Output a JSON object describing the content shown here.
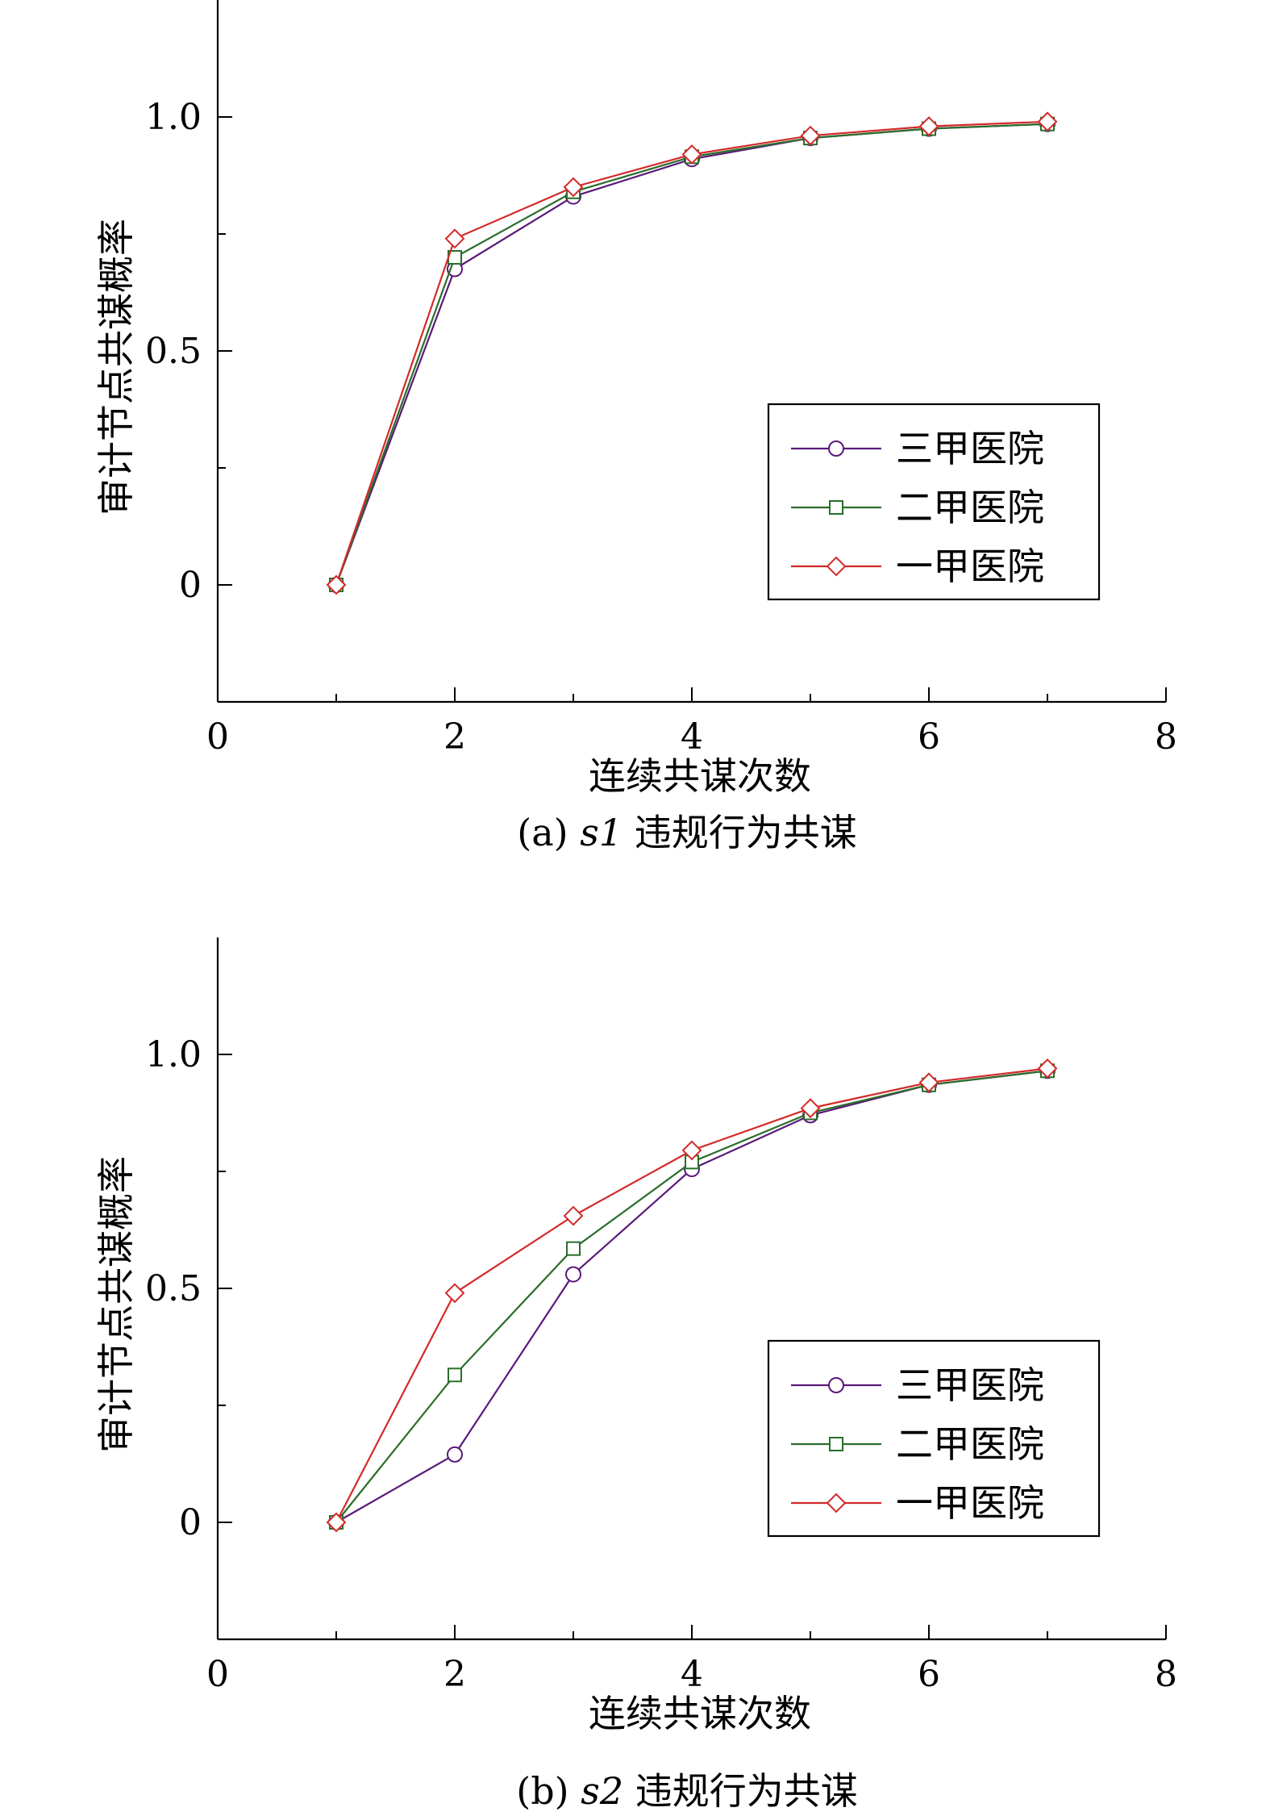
{
  "chart_data": [
    {
      "type": "line",
      "caption_prefix": "(a) ",
      "caption_var": "s1",
      "caption_suffix": " 违规行为共谋",
      "xlabel": "连续共谋次数",
      "ylabel": "审计节点共谋概率",
      "xlim": [
        0,
        8
      ],
      "ylim": [
        -0.25,
        1.25
      ],
      "xticks": [
        0,
        2,
        4,
        6,
        8
      ],
      "xtick_labels": [
        "0",
        "2",
        "4",
        "6",
        "8"
      ],
      "xticks_minor": [
        1,
        3,
        5,
        7
      ],
      "yticks": [
        0,
        0.5,
        1.0
      ],
      "ytick_labels": [
        "0",
        "0.5",
        "1.0"
      ],
      "yticks_minor": [
        0.25,
        0.75
      ],
      "legend_position": "center-right",
      "x": [
        1,
        2,
        3,
        4,
        5,
        6,
        7
      ],
      "series": [
        {
          "name": "三甲医院",
          "marker": "circle",
          "color": "#5a1a7a",
          "values": [
            0,
            0.675,
            0.83,
            0.91,
            0.955,
            0.975,
            0.985
          ]
        },
        {
          "name": "二甲医院",
          "marker": "square",
          "color": "#2a6e2a",
          "values": [
            0,
            0.7,
            0.84,
            0.915,
            0.955,
            0.975,
            0.985
          ]
        },
        {
          "name": "一甲医院",
          "marker": "diamond",
          "color": "#d42a2a",
          "values": [
            0,
            0.74,
            0.85,
            0.92,
            0.96,
            0.98,
            0.99
          ]
        }
      ]
    },
    {
      "type": "line",
      "caption_prefix": "(b) ",
      "caption_var": "s2",
      "caption_suffix": " 违规行为共谋",
      "xlabel": "连续共谋次数",
      "ylabel": "审计节点共谋概率",
      "xlim": [
        0,
        8
      ],
      "ylim": [
        -0.25,
        1.25
      ],
      "xticks": [
        0,
        2,
        4,
        6,
        8
      ],
      "xtick_labels": [
        "0",
        "2",
        "4",
        "6",
        "8"
      ],
      "xticks_minor": [
        1,
        3,
        5,
        7
      ],
      "yticks": [
        0,
        0.5,
        1.0
      ],
      "ytick_labels": [
        "0",
        "0.5",
        "1.0"
      ],
      "yticks_minor": [
        0.25,
        0.75
      ],
      "legend_position": "lower-right",
      "x": [
        1,
        2,
        3,
        4,
        5,
        6,
        7
      ],
      "series": [
        {
          "name": "三甲医院",
          "marker": "circle",
          "color": "#5a1a7a",
          "values": [
            0,
            0.145,
            0.53,
            0.755,
            0.87,
            0.935,
            0.965
          ]
        },
        {
          "name": "二甲医院",
          "marker": "square",
          "color": "#2a6e2a",
          "values": [
            0,
            0.315,
            0.585,
            0.77,
            0.875,
            0.935,
            0.965
          ]
        },
        {
          "name": "一甲医院",
          "marker": "diamond",
          "color": "#d42a2a",
          "values": [
            0,
            0.49,
            0.655,
            0.795,
            0.885,
            0.94,
            0.97
          ]
        }
      ]
    }
  ]
}
